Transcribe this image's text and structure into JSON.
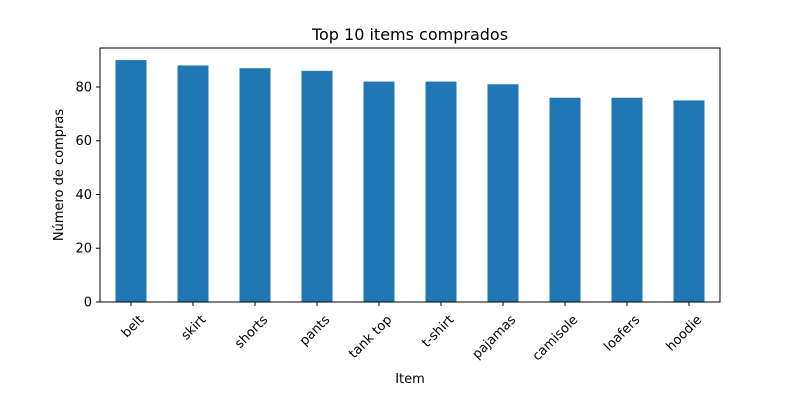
{
  "chart_data": {
    "type": "bar",
    "title": "Top 10 items comprados",
    "xlabel": "Item",
    "ylabel": "Número de compras",
    "categories": [
      "belt",
      "skirt",
      "shorts",
      "pants",
      "tank top",
      "t-shirt",
      "pajamas",
      "camisole",
      "loafers",
      "hoodie"
    ],
    "values": [
      90,
      88,
      87,
      86,
      82,
      82,
      81,
      76,
      76,
      75
    ],
    "ylim": [
      0,
      94.5
    ],
    "yticks": [
      0,
      20,
      40,
      60,
      80
    ],
    "bar_color": "#1f77b4",
    "grid": false,
    "legend": "none"
  }
}
